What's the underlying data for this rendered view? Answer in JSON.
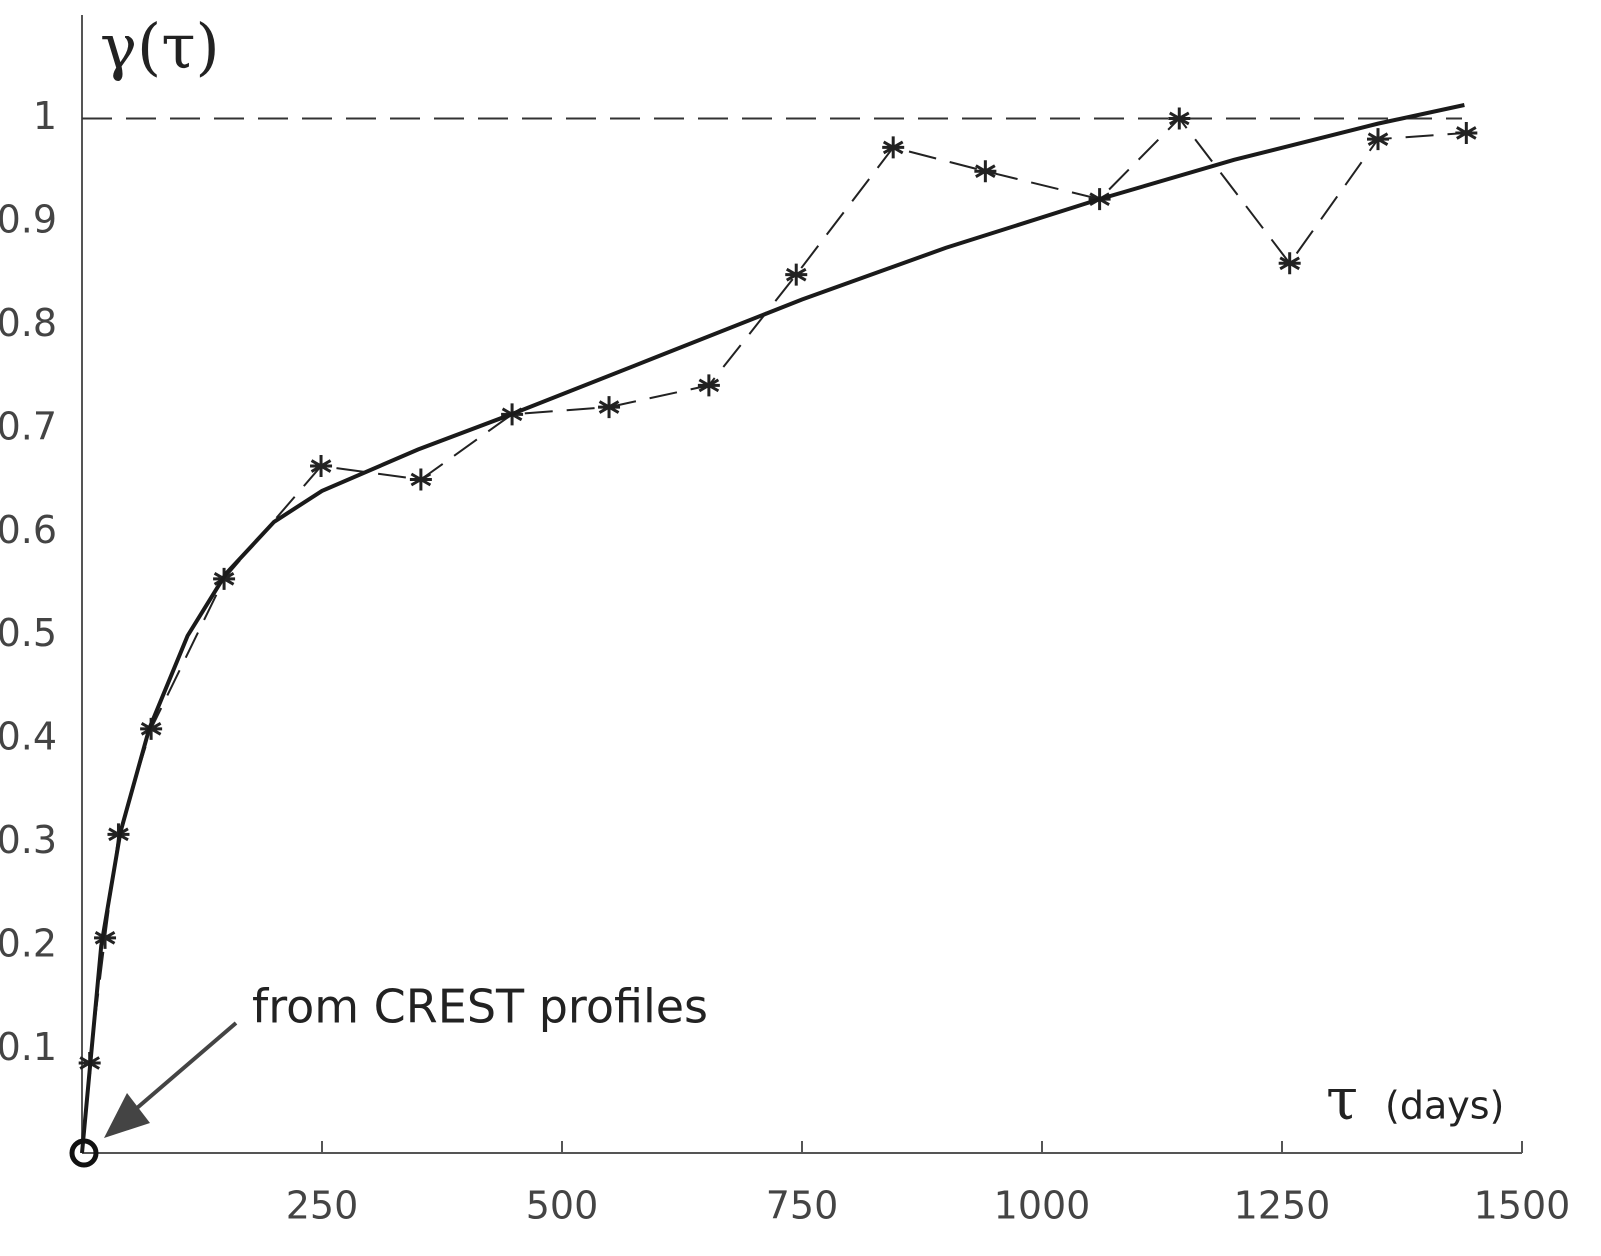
{
  "chart_data": {
    "type": "line",
    "y_label": "γ(τ)",
    "x_label": "τ",
    "x_unit": "(days)",
    "xlim": [
      0,
      1500
    ],
    "ylim": [
      0,
      1.1
    ],
    "xticks": [
      250,
      500,
      750,
      1000,
      1250,
      1500
    ],
    "yticks": [
      0.1,
      0.2,
      0.3,
      0.4,
      0.5,
      0.6,
      0.7,
      0.8,
      0.9,
      1
    ],
    "hline": 1,
    "annotation": {
      "text": "from CREST profiles",
      "x": 0,
      "y": 0
    },
    "series": [
      {
        "style": "dashed-asterisk",
        "color": "#222222",
        "x": [
          8,
          24,
          38,
          72,
          148,
          249,
          353,
          448,
          549,
          653,
          744,
          845,
          941,
          1060,
          1143,
          1258,
          1350,
          1442
        ],
        "values": [
          0.087,
          0.208,
          0.308,
          0.41,
          0.555,
          0.664,
          0.651,
          0.714,
          0.721,
          0.742,
          0.849,
          0.972,
          0.949,
          0.922,
          1.0,
          0.86,
          0.98,
          0.986
        ]
      },
      {
        "style": "solid",
        "color": "#1a1a1a",
        "x": [
          0,
          8,
          20,
          40,
          70,
          110,
          150,
          200,
          250,
          350,
          450,
          600,
          750,
          900,
          1060,
          1200,
          1350,
          1440
        ],
        "values": [
          0,
          0.08,
          0.2,
          0.31,
          0.41,
          0.5,
          0.56,
          0.61,
          0.64,
          0.68,
          0.715,
          0.77,
          0.825,
          0.875,
          0.922,
          0.96,
          0.995,
          1.013
        ]
      }
    ]
  }
}
